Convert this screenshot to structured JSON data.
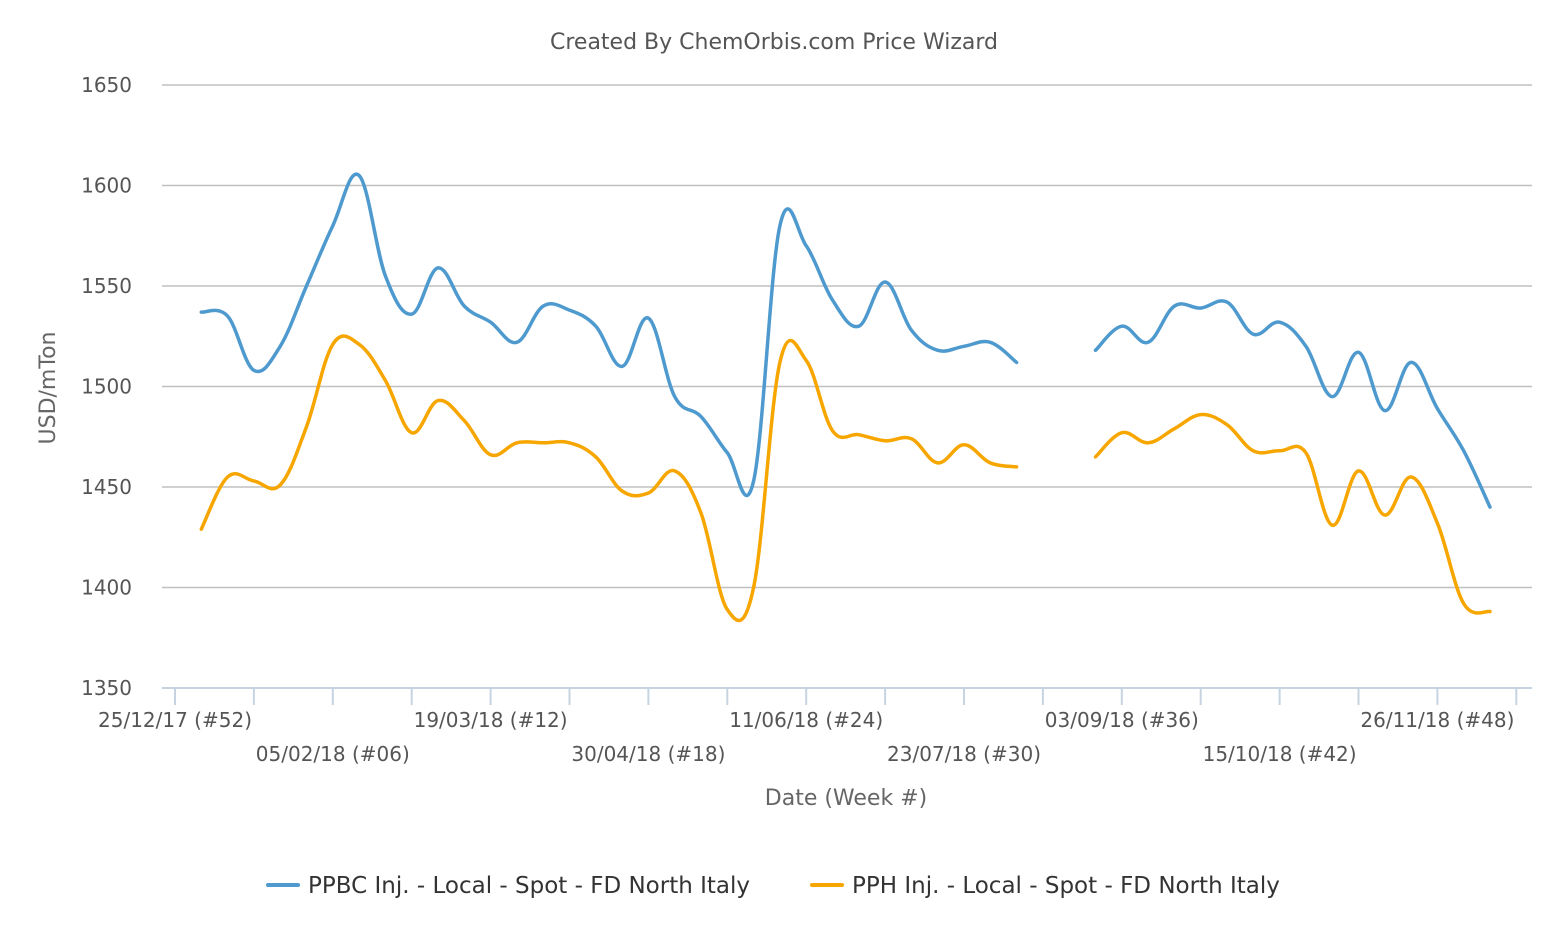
{
  "chart_data": {
    "type": "line",
    "title": "Created By ChemOrbis.com Price Wizard",
    "xlabel": "Date (Week #)",
    "ylabel": "USD/mTon",
    "ylim": [
      1350,
      1650
    ],
    "y_ticks": [
      "1650",
      "1600",
      "1550",
      "1500",
      "1450",
      "1400",
      "1350"
    ],
    "x_tick_labels": [
      "25/12/17 (#52)",
      "05/02/18 (#06)",
      "19/03/18 (#12)",
      "30/04/18 (#18)",
      "11/06/18 (#24)",
      "23/07/18 (#30)",
      "03/09/18 (#36)",
      "15/10/18 (#42)",
      "26/11/18 (#48)"
    ],
    "x_unit": "week index from 25/12/17",
    "grid": true,
    "legend_position": "bottom-center",
    "series": [
      {
        "name": "PPBC Inj. - Local - Spot - FD North Italy",
        "color": "#4e9acf",
        "points": [
          [
            1,
            1537
          ],
          [
            2,
            1535
          ],
          [
            3,
            1508
          ],
          [
            4,
            1520
          ],
          [
            5,
            1550
          ],
          [
            6,
            1580
          ],
          [
            7,
            1605
          ],
          [
            8,
            1555
          ],
          [
            9,
            1536
          ],
          [
            10,
            1559
          ],
          [
            11,
            1540
          ],
          [
            12,
            1532
          ],
          [
            13,
            1522
          ],
          [
            14,
            1540
          ],
          [
            15,
            1538
          ],
          [
            16,
            1530
          ],
          [
            17,
            1510
          ],
          [
            18,
            1534
          ],
          [
            19,
            1495
          ],
          [
            20,
            1485
          ],
          [
            21,
            1467
          ],
          [
            22,
            1453
          ],
          [
            23,
            1580
          ],
          [
            24,
            1570
          ],
          [
            25,
            1543
          ],
          [
            26,
            1530
          ],
          [
            27,
            1552
          ],
          [
            28,
            1528
          ],
          [
            29,
            1518
          ],
          [
            30,
            1520
          ],
          [
            31,
            1522
          ],
          [
            32,
            1512
          ],
          [
            35,
            1518
          ],
          [
            36,
            1530
          ],
          [
            37,
            1522
          ],
          [
            38,
            1540
          ],
          [
            39,
            1539
          ],
          [
            40,
            1542
          ],
          [
            41,
            1526
          ],
          [
            42,
            1532
          ],
          [
            43,
            1520
          ],
          [
            44,
            1495
          ],
          [
            45,
            1517
          ],
          [
            46,
            1488
          ],
          [
            47,
            1512
          ],
          [
            48,
            1489
          ],
          [
            49,
            1468
          ],
          [
            50,
            1440
          ]
        ]
      },
      {
        "name": "PPH Inj. - Local - Spot - FD North Italy",
        "color": "#f7a600",
        "points": [
          [
            1,
            1429
          ],
          [
            2,
            1455
          ],
          [
            3,
            1453
          ],
          [
            4,
            1451
          ],
          [
            5,
            1480
          ],
          [
            6,
            1521
          ],
          [
            7,
            1521
          ],
          [
            8,
            1503
          ],
          [
            9,
            1477
          ],
          [
            10,
            1493
          ],
          [
            11,
            1483
          ],
          [
            12,
            1466
          ],
          [
            13,
            1472
          ],
          [
            14,
            1472
          ],
          [
            15,
            1472
          ],
          [
            16,
            1465
          ],
          [
            17,
            1448
          ],
          [
            18,
            1447
          ],
          [
            19,
            1458
          ],
          [
            20,
            1437
          ],
          [
            21,
            1389
          ],
          [
            22,
            1400
          ],
          [
            23,
            1512
          ],
          [
            24,
            1513
          ],
          [
            25,
            1478
          ],
          [
            26,
            1476
          ],
          [
            27,
            1473
          ],
          [
            28,
            1474
          ],
          [
            29,
            1462
          ],
          [
            30,
            1471
          ],
          [
            31,
            1462
          ],
          [
            32,
            1460
          ],
          [
            35,
            1465
          ],
          [
            36,
            1477
          ],
          [
            37,
            1472
          ],
          [
            38,
            1479
          ],
          [
            39,
            1486
          ],
          [
            40,
            1481
          ],
          [
            41,
            1468
          ],
          [
            42,
            1468
          ],
          [
            43,
            1467
          ],
          [
            44,
            1431
          ],
          [
            45,
            1458
          ],
          [
            46,
            1436
          ],
          [
            47,
            1455
          ],
          [
            48,
            1432
          ],
          [
            49,
            1392
          ],
          [
            50,
            1388
          ]
        ]
      }
    ]
  }
}
